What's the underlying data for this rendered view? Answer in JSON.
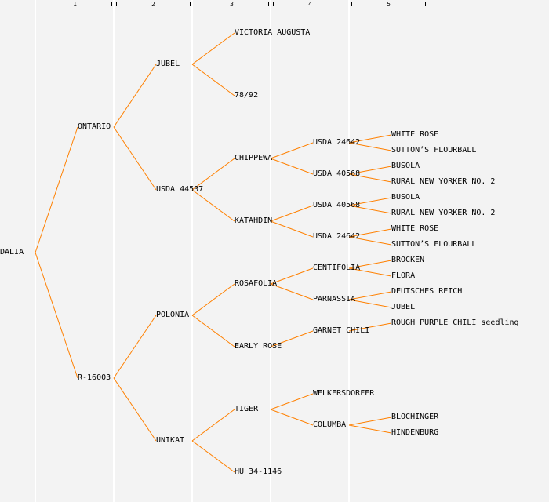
{
  "columns": [
    "1",
    "2",
    "3",
    "4",
    "5"
  ],
  "line_color": "#ff8000",
  "tree": {
    "name": "DALIA",
    "children": [
      {
        "name": "ONTARIO",
        "children": [
          {
            "name": "JUBEL",
            "children": [
              {
                "name": "VICTORIA AUGUSTA"
              },
              {
                "name": "78/92"
              }
            ]
          },
          {
            "name": "USDA 44537",
            "children": [
              {
                "name": "CHIPPEWA",
                "children": [
                  {
                    "name": "USDA 24642",
                    "children": [
                      {
                        "name": "WHITE ROSE"
                      },
                      {
                        "name": "SUTTON’S FLOURBALL"
                      }
                    ]
                  },
                  {
                    "name": "USDA 40568",
                    "children": [
                      {
                        "name": "BUSOLA"
                      },
                      {
                        "name": "RURAL NEW YORKER NO. 2"
                      }
                    ]
                  }
                ]
              },
              {
                "name": "KATAHDIN",
                "children": [
                  {
                    "name": "USDA 40568",
                    "children": [
                      {
                        "name": "BUSOLA"
                      },
                      {
                        "name": "RURAL NEW YORKER NO. 2"
                      }
                    ]
                  },
                  {
                    "name": "USDA 24642",
                    "children": [
                      {
                        "name": "WHITE ROSE"
                      },
                      {
                        "name": "SUTTON’S FLOURBALL"
                      }
                    ]
                  }
                ]
              }
            ]
          }
        ]
      },
      {
        "name": "R-16003",
        "children": [
          {
            "name": "POLONIA",
            "children": [
              {
                "name": "ROSAFOLIA",
                "children": [
                  {
                    "name": "CENTIFOLIA",
                    "children": [
                      {
                        "name": "BROCKEN"
                      },
                      {
                        "name": "FLORA"
                      }
                    ]
                  },
                  {
                    "name": "PARNASSIA",
                    "children": [
                      {
                        "name": "DEUTSCHES REICH"
                      },
                      {
                        "name": "JUBEL"
                      }
                    ]
                  }
                ]
              },
              {
                "name": "EARLY ROSE",
                "children": [
                  {
                    "name": "GARNET CHILI",
                    "children": [
                      {
                        "name": "ROUGH PURPLE CHILI seedling"
                      }
                    ]
                  }
                ]
              }
            ]
          },
          {
            "name": "UNIKAT",
            "children": [
              {
                "name": "TIGER",
                "children": [
                  {
                    "name": "WELKERSDORFER"
                  },
                  {
                    "name": "COLUMBA",
                    "children": [
                      {
                        "name": "BLOCHINGER"
                      },
                      {
                        "name": "HINDENBURG"
                      }
                    ]
                  }
                ]
              },
              {
                "name": "HU 34-1146"
              }
            ]
          }
        ]
      }
    ]
  }
}
